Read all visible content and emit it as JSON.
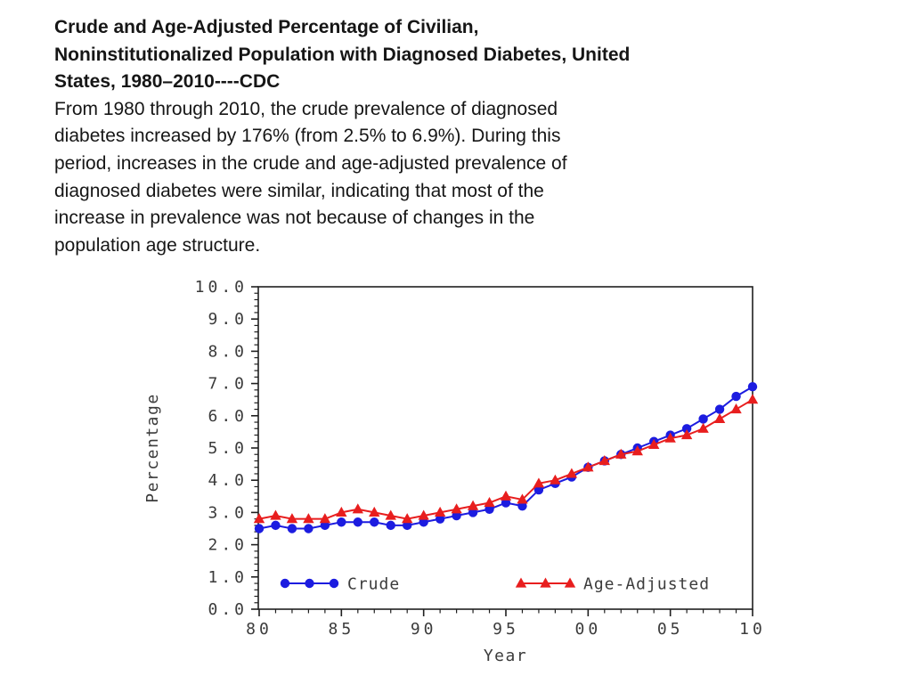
{
  "slide": {
    "title_lines": [
      "Crude and Age-Adjusted Percentage of Civilian,",
      "Noninstitutionalized Population with Diagnosed Diabetes, United",
      "States, 1980–2010----CDC"
    ],
    "body_lines": [
      "From 1980 through 2010, the crude prevalence of diagnosed",
      "diabetes increased by 176% (from 2.5% to 6.9%). During this",
      "period, increases in the crude and age-adjusted prevalence of",
      "diagnosed diabetes were similar, indicating that most of the",
      "increase in prevalence was not because of changes in the",
      "population age structure."
    ]
  },
  "chart_data": {
    "type": "line",
    "title": "",
    "xlabel": "Year",
    "ylabel": "Percentage",
    "xlim": [
      1980,
      2010
    ],
    "ylim": [
      0,
      10
    ],
    "grid": "off",
    "legend_position": "bottom-inside",
    "x_major_ticks": [
      1980,
      1985,
      1990,
      1995,
      2000,
      2005,
      2010
    ],
    "x_tick_labels": [
      "80",
      "85",
      "90",
      "95",
      "00",
      "05",
      "10"
    ],
    "x_minor_step_years": 1,
    "y_major_step": 1.0,
    "y_minor_step": 0.2,
    "y_tick_labels": [
      "0.0",
      "1.0",
      "2.0",
      "3.0",
      "4.0",
      "5.0",
      "6.0",
      "7.0",
      "8.0",
      "9.0",
      "10.0"
    ],
    "x": [
      1980,
      1981,
      1982,
      1983,
      1984,
      1985,
      1986,
      1987,
      1988,
      1989,
      1990,
      1991,
      1992,
      1993,
      1994,
      1995,
      1996,
      1997,
      1998,
      1999,
      2000,
      2001,
      2002,
      2003,
      2004,
      2005,
      2006,
      2007,
      2008,
      2009,
      2010
    ],
    "series": [
      {
        "name": "Crude",
        "marker": "circle",
        "color": "#1c1ce0",
        "values": [
          2.5,
          2.6,
          2.5,
          2.5,
          2.6,
          2.7,
          2.7,
          2.7,
          2.6,
          2.6,
          2.7,
          2.8,
          2.9,
          3.0,
          3.1,
          3.3,
          3.2,
          3.7,
          3.9,
          4.1,
          4.4,
          4.6,
          4.8,
          5.0,
          5.2,
          5.4,
          5.6,
          5.9,
          6.2,
          6.6,
          6.9
        ]
      },
      {
        "name": "Age-Adjusted",
        "marker": "triangle",
        "color": "#e81e1e",
        "values": [
          2.8,
          2.9,
          2.8,
          2.8,
          2.8,
          3.0,
          3.1,
          3.0,
          2.9,
          2.8,
          2.9,
          3.0,
          3.1,
          3.2,
          3.3,
          3.5,
          3.4,
          3.9,
          4.0,
          4.2,
          4.4,
          4.6,
          4.8,
          4.9,
          5.1,
          5.3,
          5.4,
          5.6,
          5.9,
          6.2,
          6.5
        ]
      }
    ]
  },
  "colors": {
    "frame": "#1f1f1f",
    "chart_text": "#3b3b3b",
    "slide_text": "#161616"
  }
}
